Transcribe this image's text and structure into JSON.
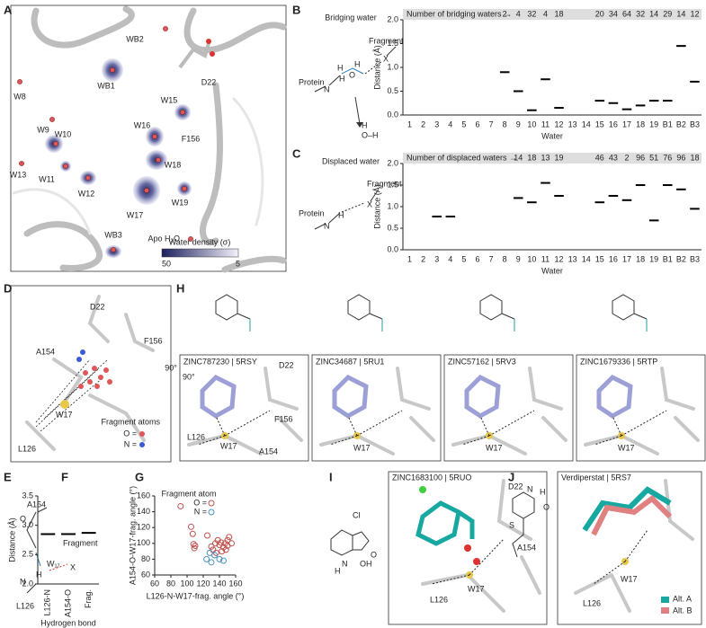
{
  "panel_labels": [
    "A",
    "B",
    "C",
    "D",
    "E",
    "F",
    "G",
    "H",
    "I",
    "J"
  ],
  "panel_a": {
    "labels": [
      "WB2",
      "D22",
      "WB1",
      "W8",
      "W15",
      "W9",
      "W10",
      "W16",
      "F156",
      "W18",
      "W13",
      "W11",
      "W12",
      "W19",
      "W17",
      "WB3"
    ],
    "apo_label": "Apo H₂O",
    "colorbar": {
      "title": "Water density (σ)",
      "high": "50",
      "low": "5"
    }
  },
  "schemes": {
    "bridging": {
      "title": "Bridging water",
      "protein": "Protein",
      "fragment": "Fragment",
      "x": "X",
      "n": "N",
      "h": "H",
      "water_h": "H",
      "water_o": "O",
      "water_h2": "H",
      "release_h": "H",
      "release_o": "O–H"
    },
    "displaced": {
      "title": "Displaced water",
      "protein": "Protein",
      "fragment": "Fragment",
      "x": "X",
      "n": "N",
      "h": "H"
    }
  },
  "chart_data": [
    {
      "type": "strip",
      "header": "Number of bridging waters →",
      "categories": [
        "1",
        "2",
        "3",
        "4",
        "5",
        "6",
        "7",
        "8",
        "9",
        "10",
        "11",
        "12",
        "13",
        "14",
        "15",
        "16",
        "17",
        "18",
        "19",
        "B1",
        "B2",
        "B3"
      ],
      "values": [
        null,
        null,
        null,
        null,
        null,
        null,
        null,
        0.9,
        0.5,
        0.1,
        0.75,
        0.15,
        null,
        null,
        0.3,
        0.25,
        0.12,
        0.2,
        0.3,
        0.3,
        1.45,
        0.7
      ],
      "counts": [
        null,
        null,
        null,
        null,
        null,
        null,
        null,
        2,
        4,
        32,
        4,
        18,
        null,
        null,
        20,
        34,
        64,
        32,
        14,
        29,
        14,
        12
      ],
      "x_label": "Water",
      "y_label": "Distance (Å)",
      "ylim": [
        0,
        2
      ],
      "yticks": [
        {
          "value": 0,
          "label": "0.0"
        },
        {
          "value": 0.5,
          "label": "0.5"
        },
        {
          "value": 1,
          "label": "1.0"
        },
        {
          "value": 1.5,
          "label": "1.5"
        },
        {
          "value": 2,
          "label": "2.0"
        }
      ],
      "color": "#000000"
    },
    {
      "type": "strip",
      "header": "Number of displaced waters →",
      "categories": [
        "1",
        "2",
        "3",
        "4",
        "5",
        "6",
        "7",
        "8",
        "9",
        "10",
        "11",
        "12",
        "13",
        "14",
        "15",
        "16",
        "17",
        "18",
        "19",
        "B1",
        "B2",
        "B3"
      ],
      "values": [
        null,
        null,
        0.77,
        0.77,
        null,
        null,
        null,
        null,
        1.2,
        1.1,
        1.55,
        1.25,
        null,
        null,
        1.1,
        1.25,
        1.15,
        1.5,
        0.68,
        1.5,
        1.4,
        0.95
      ],
      "counts": [
        null,
        null,
        null,
        null,
        null,
        null,
        null,
        null,
        14,
        18,
        13,
        19,
        null,
        null,
        46,
        43,
        2,
        96,
        51,
        76,
        96,
        18
      ],
      "x_label": "Water",
      "y_label": "Distance (Å)",
      "ylim": [
        0,
        2
      ],
      "yticks": [
        {
          "value": 0,
          "label": "0.0"
        },
        {
          "value": 0.5,
          "label": "0.5"
        },
        {
          "value": 1,
          "label": "1.0"
        },
        {
          "value": 1.5,
          "label": "1.5"
        },
        {
          "value": 2,
          "label": "2.0"
        }
      ],
      "color": "#000000"
    },
    {
      "type": "strip",
      "categories": [
        "L126-N",
        "A154-O",
        "Frag."
      ],
      "values": [
        2.85,
        2.85,
        2.87
      ],
      "x_label": "Hydrogen bond",
      "y_label": "Distance (Å)",
      "ylim": [
        2,
        3.5
      ],
      "yticks": [
        {
          "value": 2,
          "label": "2.0"
        },
        {
          "value": 2.5,
          "label": "2.5"
        },
        {
          "value": 3,
          "label": "3.0"
        },
        {
          "value": 3.5,
          "label": "3.5"
        }
      ],
      "color": "#000000"
    },
    {
      "type": "scatter",
      "legend_title": "Fragment atom",
      "x_label": "L126-N-W17-frag. angle (°)",
      "y_label": "A154-O-W17-frag. angle (°)",
      "xlim": [
        60,
        160
      ],
      "ylim": [
        60,
        160
      ],
      "xticks": [
        60,
        80,
        100,
        120,
        140,
        160
      ],
      "yticks": [
        60,
        80,
        100,
        120,
        140,
        160
      ],
      "series": [
        {
          "name": "O =",
          "color": "#c0504d",
          "x": [
            92,
            105,
            107,
            108,
            110,
            109,
            125,
            130,
            135,
            138,
            140,
            142,
            145,
            147,
            148,
            150,
            150,
            152,
            155,
            143,
            136,
            132
          ],
          "y": [
            147,
            121,
            112,
            99,
            97,
            94,
            110,
            96,
            100,
            104,
            98,
            101,
            95,
            100,
            92,
            97,
            104,
            108,
            100,
            90,
            88,
            92
          ]
        },
        {
          "name": "N =",
          "color": "#4a90c2",
          "x": [
            124,
            130,
            134,
            140,
            145,
            128
          ],
          "y": [
            80,
            76,
            85,
            80,
            78,
            88
          ]
        }
      ]
    }
  ],
  "panel_d": {
    "labels": [
      "D22",
      "F156",
      "A154",
      "W17",
      "L126"
    ],
    "rotation": "90°",
    "legend_title": "Fragment atoms",
    "legend": [
      "O =",
      "N ="
    ]
  },
  "panel_e": {
    "labels": [
      "A154",
      "W₁₇",
      "Fragment",
      "X",
      "N",
      "H",
      "L126",
      "O"
    ]
  },
  "panel_h": {
    "structures": [
      {
        "title": "ZINC787230 | 5RSY",
        "labels": [
          "D22",
          "F156",
          "L126",
          "W17",
          "A154"
        ]
      },
      {
        "title": "ZINC34687 | 5RU1",
        "labels": [
          "W17"
        ]
      },
      {
        "title": "ZINC57162 | 5RV3",
        "labels": [
          "W17"
        ]
      },
      {
        "title": "ZINC1679336 | 5RTP",
        "labels": [
          "W17"
        ]
      }
    ],
    "rotation": "90°"
  },
  "panel_i": {
    "title": "ZINC1683100 | 5RUO",
    "labels": [
      "D22",
      "A154",
      "L126",
      "W17"
    ],
    "scheme": [
      "Cl",
      "N",
      "H",
      "OH",
      "O"
    ]
  },
  "panel_j": {
    "title": "Verdiperstat | 5RS7",
    "labels": [
      "W17",
      "L126"
    ],
    "legend": [
      "Alt. A",
      "Alt. B"
    ],
    "scheme": [
      "N",
      "H",
      "O",
      "S"
    ]
  }
}
